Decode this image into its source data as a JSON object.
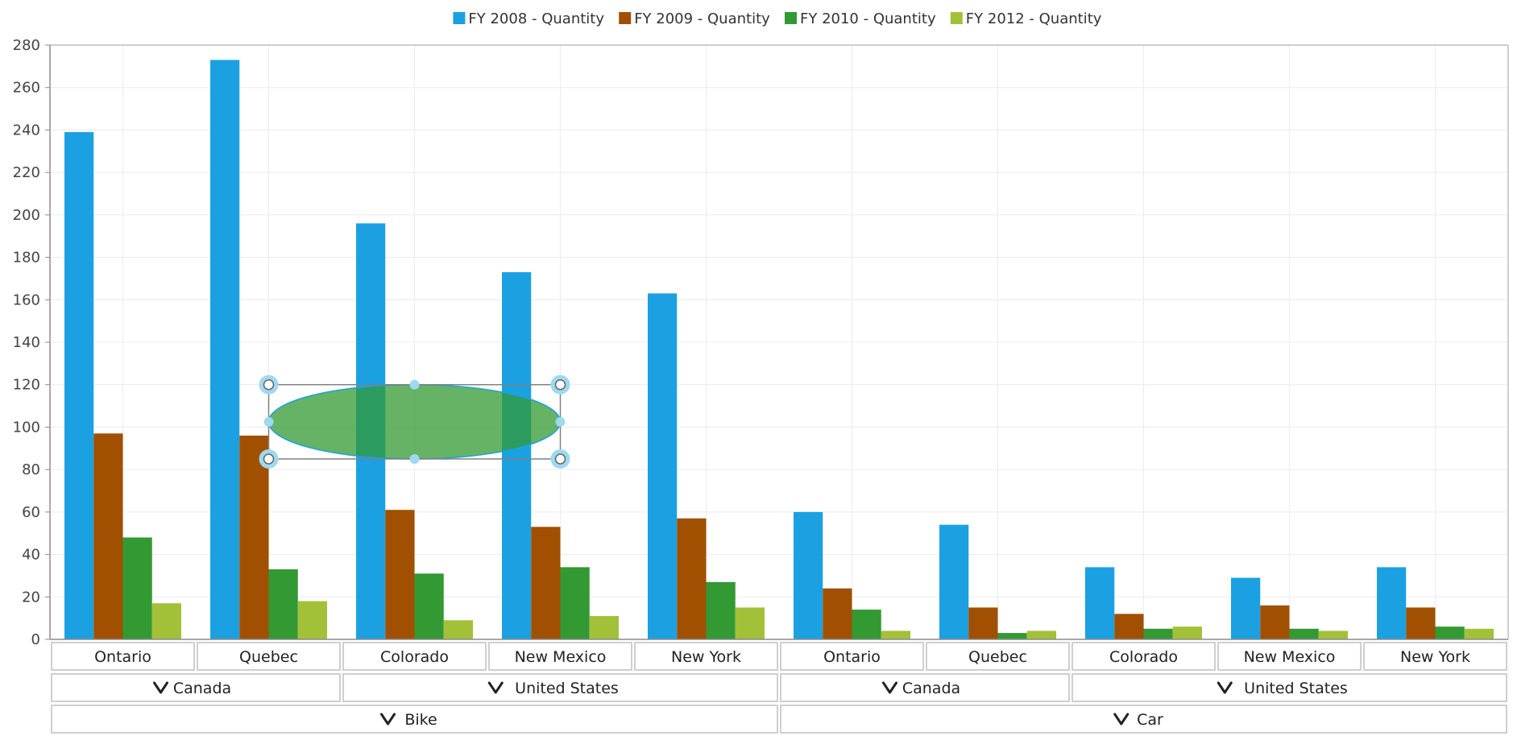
{
  "chart_data": {
    "type": "bar",
    "legend_position": "top",
    "grid": true,
    "ylim": [
      0,
      280
    ],
    "yticks": [
      0,
      20,
      40,
      60,
      80,
      100,
      120,
      140,
      160,
      180,
      200,
      220,
      240,
      260,
      280
    ],
    "categories": [
      "Ontario",
      "Quebec",
      "Colorado",
      "New Mexico",
      "New York",
      "Ontario",
      "Quebec",
      "Colorado",
      "New Mexico",
      "New York"
    ],
    "groups_level2": [
      {
        "label": "Canada",
        "span": 2
      },
      {
        "label": "United States",
        "span": 3
      },
      {
        "label": "Canada",
        "span": 2
      },
      {
        "label": "United States",
        "span": 3
      }
    ],
    "groups_level1": [
      {
        "label": "Bike",
        "span": 5
      },
      {
        "label": "Car",
        "span": 5
      }
    ],
    "series": [
      {
        "name": "FY 2008 - Quantity",
        "color": "#1ba1e2",
        "values": [
          239,
          273,
          196,
          173,
          163,
          60,
          54,
          34,
          29,
          34
        ]
      },
      {
        "name": "FY 2009 - Quantity",
        "color": "#a05000",
        "values": [
          97,
          96,
          61,
          53,
          57,
          24,
          15,
          12,
          16,
          15
        ]
      },
      {
        "name": "FY 2010 - Quantity",
        "color": "#339933",
        "values": [
          48,
          33,
          31,
          34,
          27,
          14,
          3,
          5,
          5,
          6
        ]
      },
      {
        "name": "FY 2012 - Quantity",
        "color": "#a2c139",
        "values": [
          17,
          18,
          9,
          11,
          15,
          4,
          4,
          6,
          4,
          5
        ]
      }
    ],
    "annotation": {
      "shape": "ellipse",
      "fill": "#339933",
      "x_range": [
        1.5,
        3.5
      ],
      "y_range": [
        85,
        120
      ],
      "selected": true
    }
  }
}
